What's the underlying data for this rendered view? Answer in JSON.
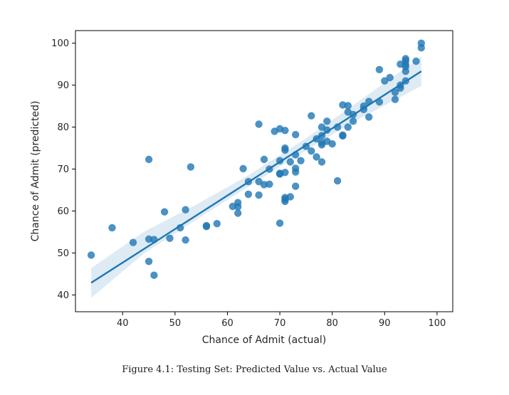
{
  "caption": "Figure 4.1: Testing Set: Predicted Value vs. Actual Value",
  "chart_data": {
    "type": "scatter",
    "title": "",
    "xlabel": "Chance of Admit (actual)",
    "ylabel": "Chance of Admit (predicted)",
    "xlim": [
      31,
      103
    ],
    "ylim": [
      36,
      103
    ],
    "xticks": [
      40,
      50,
      60,
      70,
      80,
      90,
      100
    ],
    "yticks": [
      40,
      50,
      60,
      70,
      80,
      90,
      100
    ],
    "grid": false,
    "point_color": "#1f77b4",
    "regression_line": {
      "x": [
        34,
        97
      ],
      "y": [
        42.9,
        93.3
      ]
    },
    "confidence_band": {
      "x": [
        34,
        44,
        54,
        64,
        74,
        84,
        97
      ],
      "lower": [
        39.3,
        49.8,
        57.9,
        65.8,
        73.7,
        81.2,
        89.8
      ],
      "upper": [
        46.4,
        55.0,
        61.5,
        68.5,
        76.5,
        85.2,
        96.8
      ]
    },
    "points": [
      {
        "x": 34,
        "y": 49.5
      },
      {
        "x": 38,
        "y": 56.0
      },
      {
        "x": 42,
        "y": 52.5
      },
      {
        "x": 45,
        "y": 53.3
      },
      {
        "x": 45,
        "y": 48.0
      },
      {
        "x": 45,
        "y": 72.3
      },
      {
        "x": 46,
        "y": 44.7
      },
      {
        "x": 46,
        "y": 53.2
      },
      {
        "x": 48,
        "y": 59.8
      },
      {
        "x": 49,
        "y": 53.5
      },
      {
        "x": 51,
        "y": 56.0
      },
      {
        "x": 52,
        "y": 60.3
      },
      {
        "x": 52,
        "y": 53.1
      },
      {
        "x": 53,
        "y": 70.5
      },
      {
        "x": 56,
        "y": 56.5
      },
      {
        "x": 56,
        "y": 56.3
      },
      {
        "x": 58,
        "y": 57.0
      },
      {
        "x": 61,
        "y": 61.1
      },
      {
        "x": 62,
        "y": 62.0
      },
      {
        "x": 62,
        "y": 61.0
      },
      {
        "x": 62,
        "y": 59.5
      },
      {
        "x": 63,
        "y": 70.1
      },
      {
        "x": 64,
        "y": 67.0
      },
      {
        "x": 64,
        "y": 64.0
      },
      {
        "x": 66,
        "y": 80.7
      },
      {
        "x": 66,
        "y": 67.0
      },
      {
        "x": 66,
        "y": 63.8
      },
      {
        "x": 67,
        "y": 72.3
      },
      {
        "x": 67,
        "y": 66.3
      },
      {
        "x": 68,
        "y": 70.0
      },
      {
        "x": 68,
        "y": 66.4
      },
      {
        "x": 69,
        "y": 79.0
      },
      {
        "x": 70,
        "y": 79.6
      },
      {
        "x": 70,
        "y": 72.0
      },
      {
        "x": 70,
        "y": 69.0
      },
      {
        "x": 70,
        "y": 68.8
      },
      {
        "x": 70,
        "y": 57.1
      },
      {
        "x": 71,
        "y": 79.2
      },
      {
        "x": 71,
        "y": 75.0
      },
      {
        "x": 71,
        "y": 74.5
      },
      {
        "x": 71,
        "y": 69.2
      },
      {
        "x": 71,
        "y": 63.2
      },
      {
        "x": 71,
        "y": 62.8
      },
      {
        "x": 71,
        "y": 62.3
      },
      {
        "x": 72,
        "y": 71.7
      },
      {
        "x": 72,
        "y": 63.4
      },
      {
        "x": 73,
        "y": 78.2
      },
      {
        "x": 73,
        "y": 73.4
      },
      {
        "x": 73,
        "y": 70.2
      },
      {
        "x": 73,
        "y": 69.3
      },
      {
        "x": 73,
        "y": 65.9
      },
      {
        "x": 74,
        "y": 72.0
      },
      {
        "x": 75,
        "y": 75.4
      },
      {
        "x": 76,
        "y": 82.7
      },
      {
        "x": 76,
        "y": 74.3
      },
      {
        "x": 77,
        "y": 77.2
      },
      {
        "x": 77,
        "y": 72.9
      },
      {
        "x": 78,
        "y": 80.0
      },
      {
        "x": 78,
        "y": 78.0
      },
      {
        "x": 78,
        "y": 76.3
      },
      {
        "x": 78,
        "y": 75.8
      },
      {
        "x": 78,
        "y": 71.7
      },
      {
        "x": 79,
        "y": 81.4
      },
      {
        "x": 79,
        "y": 79.3
      },
      {
        "x": 79,
        "y": 76.6
      },
      {
        "x": 80,
        "y": 76.0
      },
      {
        "x": 81,
        "y": 80.0
      },
      {
        "x": 81,
        "y": 67.2
      },
      {
        "x": 82,
        "y": 85.3
      },
      {
        "x": 82,
        "y": 78.1
      },
      {
        "x": 82,
        "y": 77.9
      },
      {
        "x": 83,
        "y": 85.1
      },
      {
        "x": 83,
        "y": 83.6
      },
      {
        "x": 83,
        "y": 80.0
      },
      {
        "x": 84,
        "y": 83.0
      },
      {
        "x": 84,
        "y": 81.4
      },
      {
        "x": 86,
        "y": 85.0
      },
      {
        "x": 86,
        "y": 84.2
      },
      {
        "x": 87,
        "y": 86.1
      },
      {
        "x": 87,
        "y": 82.4
      },
      {
        "x": 89,
        "y": 93.7
      },
      {
        "x": 89,
        "y": 86.0
      },
      {
        "x": 90,
        "y": 91.0
      },
      {
        "x": 91,
        "y": 91.8
      },
      {
        "x": 92,
        "y": 88.3
      },
      {
        "x": 92,
        "y": 86.6
      },
      {
        "x": 93,
        "y": 95.0
      },
      {
        "x": 93,
        "y": 90.0
      },
      {
        "x": 93,
        "y": 89.3
      },
      {
        "x": 94,
        "y": 96.3
      },
      {
        "x": 94,
        "y": 95.8
      },
      {
        "x": 94,
        "y": 95.0
      },
      {
        "x": 94,
        "y": 94.4
      },
      {
        "x": 94,
        "y": 93.3
      },
      {
        "x": 94,
        "y": 91.0
      },
      {
        "x": 96,
        "y": 95.7
      },
      {
        "x": 97,
        "y": 100.0
      },
      {
        "x": 97,
        "y": 98.9
      }
    ]
  }
}
